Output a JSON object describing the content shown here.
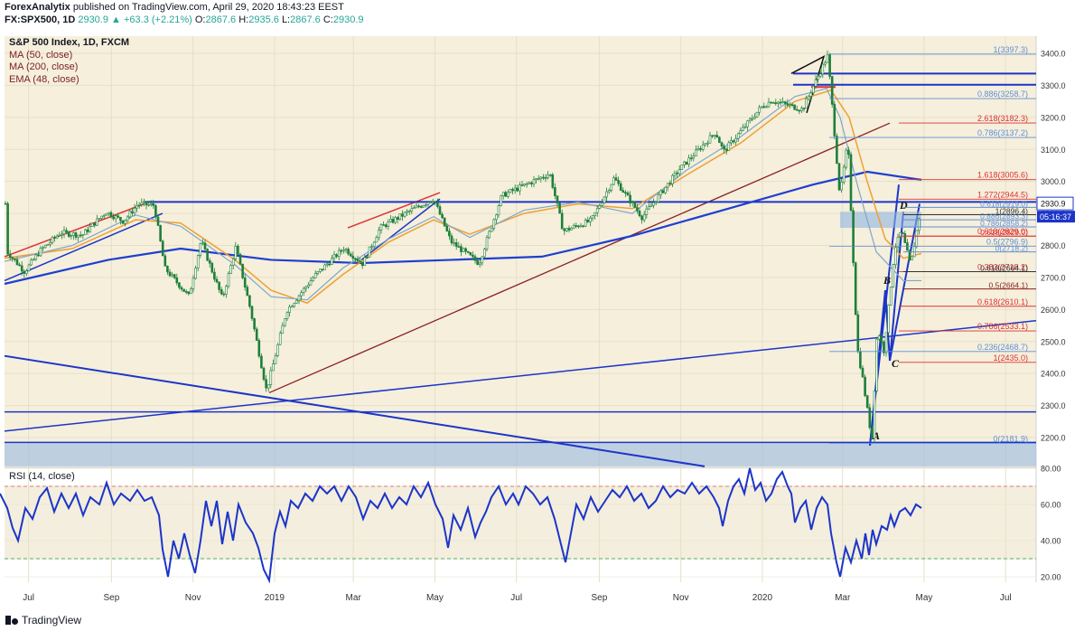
{
  "header": {
    "publisher": "ForexAnalytix",
    "published_text": "published on TradingView.com, April 29, 2020 18:43:23 EEST",
    "symbol": "FX:SPX500, 1D",
    "change": "2930.9 ▲ +63.3 (+2.21%)",
    "o_label": "O:",
    "o": "2867.6",
    "h_label": "H:",
    "h": "2935.6",
    "l_label": "L:",
    "l": "2867.6",
    "c_label": "C:",
    "c": "2930.9"
  },
  "legend": {
    "title": "S&P 500 Index, 1D, FXCM",
    "ma50": "MA (50, close)",
    "ma200": "MA (200, close)",
    "ema48": "EMA (48, close)"
  },
  "rsi_label": "RSI (14, close)",
  "footer_logo": "TradingView",
  "colors": {
    "price_bg": "#f5efdc",
    "rsi_bg": "#f3eede",
    "candle": "#1e7f3a",
    "ma50": "#7fa7c9",
    "ma200": "#1f3fd0",
    "ema48": "#f0a030",
    "trend": "#1c35c8",
    "dark_red": "#8b1f1f",
    "fib_blue": "#5f8fd8",
    "fib_red": "#d33"
  },
  "chart_data": {
    "type": "line",
    "symbol": "S&P 500 Index, 1D, FXCM",
    "y_ticks": [
      "3400.0",
      "3300.0",
      "3200.0",
      "3100.0",
      "3000.0",
      "2900.0",
      "2800.0",
      "2700.0",
      "2600.0",
      "2500.0",
      "2400.0",
      "2300.0",
      "2200.0"
    ],
    "y_range": [
      2130,
      3430
    ],
    "x_ticks": [
      "Jul",
      "Sep",
      "Nov",
      "2019",
      "Mar",
      "May",
      "Jul",
      "Sep",
      "Nov",
      "2020",
      "Mar",
      "May",
      "Jul"
    ],
    "price_tag": "2930.9",
    "time_tag": "05:16:37",
    "close_path": [
      [
        "2018-06-15",
        2780
      ],
      [
        "2018-06-28",
        2718
      ],
      [
        "2018-07-10",
        2785
      ],
      [
        "2018-07-25",
        2840
      ],
      [
        "2018-08-10",
        2832
      ],
      [
        "2018-08-28",
        2905
      ],
      [
        "2018-09-10",
        2875
      ],
      [
        "2018-09-21",
        2930
      ],
      [
        "2018-10-03",
        2925
      ],
      [
        "2018-10-11",
        2728
      ],
      [
        "2018-10-29",
        2641
      ],
      [
        "2018-11-07",
        2815
      ],
      [
        "2018-11-23",
        2633
      ],
      [
        "2018-12-03",
        2795
      ],
      [
        "2018-12-14",
        2600
      ],
      [
        "2018-12-26",
        2346
      ],
      [
        "2019-01-10",
        2596
      ],
      [
        "2019-01-31",
        2705
      ],
      [
        "2019-02-22",
        2792
      ],
      [
        "2019-03-08",
        2743
      ],
      [
        "2019-03-21",
        2855
      ],
      [
        "2019-04-12",
        2907
      ],
      [
        "2019-04-30",
        2946
      ],
      [
        "2019-05-13",
        2812
      ],
      [
        "2019-06-03",
        2744
      ],
      [
        "2019-06-20",
        2955
      ],
      [
        "2019-07-26",
        3025
      ],
      [
        "2019-08-05",
        2845
      ],
      [
        "2019-08-26",
        2878
      ],
      [
        "2019-09-12",
        3010
      ],
      [
        "2019-10-03",
        2888
      ],
      [
        "2019-10-31",
        3038
      ],
      [
        "2019-11-27",
        3154
      ],
      [
        "2019-12-03",
        3093
      ],
      [
        "2019-12-31",
        3231
      ],
      [
        "2020-01-08",
        3253
      ],
      [
        "2020-01-31",
        3225
      ],
      [
        "2020-02-19",
        3394
      ],
      [
        "2020-02-28",
        2954
      ],
      [
        "2020-03-05",
        3125
      ],
      [
        "2020-03-12",
        2480
      ],
      [
        "2020-03-16",
        2386
      ],
      [
        "2020-03-23",
        2191
      ],
      [
        "2020-03-27",
        2541
      ],
      [
        "2020-04-01",
        2470
      ],
      [
        "2020-04-09",
        2790
      ],
      [
        "2020-04-14",
        2846
      ],
      [
        "2020-04-21",
        2736
      ],
      [
        "2020-04-29",
        2931
      ]
    ],
    "fib_levels_blue": [
      {
        "label": "1(3397.3)",
        "value": 3397.3
      },
      {
        "label": "0.886(3258.7)",
        "value": 3258.7
      },
      {
        "label": "0.786(3137.2)",
        "value": 3137.2
      },
      {
        "label": "0.5(2796.9)",
        "value": 2796.9
      },
      {
        "label": "0.236(2468.7)",
        "value": 2468.7
      },
      {
        "label": "0(2181.9)",
        "value": 2181.9
      }
    ],
    "fib_levels_red": [
      {
        "label": "2.618(3182.3)",
        "value": 3182.3
      },
      {
        "label": "1.618(3005.6)",
        "value": 3005.6
      },
      {
        "label": "1.272(2944.5)",
        "value": 2944.5
      },
      {
        "label": "0.618(2829.0)",
        "value": 2829.0
      },
      {
        "label": "0.382(2718.2)",
        "value": 2718.2
      },
      {
        "label": "0.618(2610.1)",
        "value": 2610.1
      },
      {
        "label": "0.786(2533.1)",
        "value": 2533.1
      },
      {
        "label": "1(2435.0)",
        "value": 2435.0
      }
    ],
    "fib_cluster_labels": [
      "0.618(2919.0)",
      "1(2896.4)",
      "0.886(2893.3)",
      "0.786(2858.2)",
      "0.618(2829.0)",
      "0(2718.2)",
      "0.618(2664.1)",
      "0.5(2664.1)"
    ],
    "pattern_labels": [
      "A",
      "B",
      "C",
      "D"
    ],
    "rsi": {
      "label": "RSI (14, close)",
      "y_ticks": [
        "80.00",
        "60.00",
        "40.00",
        "20.00"
      ],
      "overbought": 70,
      "oversold": 30,
      "path": [
        [
          0,
          66
        ],
        [
          8,
          58
        ],
        [
          14,
          47
        ],
        [
          20,
          40
        ],
        [
          28,
          58
        ],
        [
          36,
          52
        ],
        [
          44,
          64
        ],
        [
          52,
          69
        ],
        [
          60,
          56
        ],
        [
          68,
          66
        ],
        [
          76,
          58
        ],
        [
          84,
          66
        ],
        [
          92,
          54
        ],
        [
          100,
          64
        ],
        [
          110,
          60
        ],
        [
          118,
          72
        ],
        [
          126,
          60
        ],
        [
          134,
          66
        ],
        [
          144,
          62
        ],
        [
          152,
          68
        ],
        [
          160,
          62
        ],
        [
          168,
          64
        ],
        [
          176,
          54
        ],
        [
          180,
          35
        ],
        [
          186,
          20
        ],
        [
          192,
          40
        ],
        [
          198,
          30
        ],
        [
          204,
          44
        ],
        [
          210,
          32
        ],
        [
          216,
          22
        ],
        [
          222,
          40
        ],
        [
          228,
          62
        ],
        [
          234,
          48
        ],
        [
          240,
          62
        ],
        [
          246,
          38
        ],
        [
          252,
          56
        ],
        [
          258,
          40
        ],
        [
          264,
          60
        ],
        [
          272,
          50
        ],
        [
          280,
          44
        ],
        [
          286,
          36
        ],
        [
          292,
          24
        ],
        [
          298,
          18
        ],
        [
          304,
          44
        ],
        [
          310,
          56
        ],
        [
          316,
          48
        ],
        [
          322,
          62
        ],
        [
          330,
          58
        ],
        [
          338,
          66
        ],
        [
          346,
          62
        ],
        [
          354,
          70
        ],
        [
          362,
          66
        ],
        [
          370,
          70
        ],
        [
          378,
          62
        ],
        [
          386,
          70
        ],
        [
          394,
          64
        ],
        [
          402,
          52
        ],
        [
          410,
          62
        ],
        [
          418,
          58
        ],
        [
          426,
          66
        ],
        [
          434,
          58
        ],
        [
          442,
          64
        ],
        [
          450,
          60
        ],
        [
          458,
          70
        ],
        [
          466,
          64
        ],
        [
          474,
          72
        ],
        [
          482,
          60
        ],
        [
          490,
          52
        ],
        [
          496,
          36
        ],
        [
          502,
          54
        ],
        [
          510,
          46
        ],
        [
          518,
          58
        ],
        [
          526,
          42
        ],
        [
          532,
          50
        ],
        [
          538,
          56
        ],
        [
          544,
          64
        ],
        [
          552,
          70
        ],
        [
          560,
          60
        ],
        [
          568,
          66
        ],
        [
          574,
          60
        ],
        [
          582,
          70
        ],
        [
          590,
          66
        ],
        [
          598,
          60
        ],
        [
          606,
          64
        ],
        [
          614,
          52
        ],
        [
          620,
          40
        ],
        [
          626,
          28
        ],
        [
          632,
          44
        ],
        [
          638,
          60
        ],
        [
          646,
          52
        ],
        [
          654,
          64
        ],
        [
          662,
          56
        ],
        [
          670,
          62
        ],
        [
          678,
          68
        ],
        [
          686,
          64
        ],
        [
          694,
          70
        ],
        [
          702,
          62
        ],
        [
          710,
          66
        ],
        [
          718,
          58
        ],
        [
          726,
          62
        ],
        [
          734,
          70
        ],
        [
          742,
          64
        ],
        [
          750,
          68
        ],
        [
          758,
          66
        ],
        [
          766,
          72
        ],
        [
          774,
          66
        ],
        [
          782,
          70
        ],
        [
          790,
          64
        ],
        [
          796,
          58
        ],
        [
          800,
          48
        ],
        [
          806,
          62
        ],
        [
          812,
          70
        ],
        [
          818,
          74
        ],
        [
          824,
          66
        ],
        [
          830,
          80
        ],
        [
          836,
          68
        ],
        [
          842,
          72
        ],
        [
          848,
          62
        ],
        [
          854,
          66
        ],
        [
          860,
          74
        ],
        [
          866,
          78
        ],
        [
          872,
          70
        ],
        [
          876,
          66
        ],
        [
          880,
          50
        ],
        [
          886,
          58
        ],
        [
          892,
          62
        ],
        [
          898,
          46
        ],
        [
          904,
          58
        ],
        [
          910,
          64
        ],
        [
          916,
          60
        ],
        [
          920,
          44
        ],
        [
          926,
          28
        ],
        [
          930,
          20
        ],
        [
          936,
          36
        ],
        [
          942,
          28
        ],
        [
          948,
          40
        ],
        [
          954,
          30
        ],
        [
          958,
          44
        ],
        [
          962,
          32
        ],
        [
          966,
          46
        ],
        [
          970,
          38
        ],
        [
          976,
          48
        ],
        [
          982,
          46
        ],
        [
          986,
          54
        ],
        [
          990,
          48
        ],
        [
          996,
          56
        ],
        [
          1002,
          58
        ],
        [
          1008,
          54
        ],
        [
          1014,
          60
        ],
        [
          1020,
          58
        ]
      ]
    }
  }
}
